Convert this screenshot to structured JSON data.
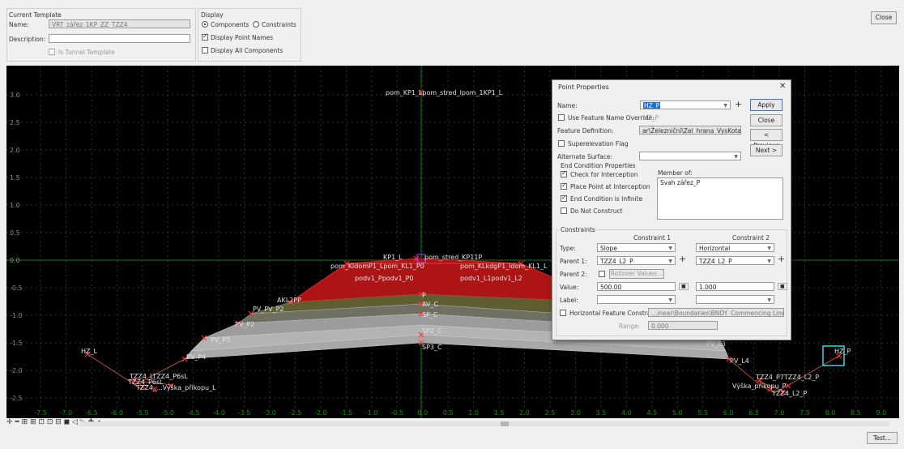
{
  "colors": {
    "canvas": "#000000",
    "grid": "#343434",
    "red": "#ad1515",
    "gray": "#a8a8a8",
    "axis": "#1d7a1d",
    "label": "#dfe3ea",
    "selectedBox": "#3fd6e0"
  },
  "template": {
    "group_title": "Current Template",
    "name_label": "Name:",
    "name_value": "VRT_zářez_1KP_ZZ_TZZ4",
    "desc_label": "Description:",
    "desc_value": "",
    "tunnel_label": "Is Tunnel Template"
  },
  "display": {
    "title": "Display",
    "components_label": "Components",
    "constraints_label": "Constraints",
    "mode": "Components",
    "point_names_label": "Display Point Names",
    "point_names_checked": true,
    "all_components_label": "Display All Components",
    "all_components_checked": false
  },
  "close_label": "Close",
  "test_label": "Test...",
  "y_ticks": [
    "3.0",
    "2.5",
    "2.0",
    "1.5",
    "1.0",
    "0.5",
    "0.0",
    "-0.5",
    "-1.0",
    "-1.5",
    "-2.0",
    "-2.5"
  ],
  "x_ticks": [
    "-7.5",
    "-7.0",
    "-6.5",
    "-6.0",
    "-5.5",
    "-5.0",
    "-4.5",
    "-4.0",
    "-3.5",
    "-3.0",
    "-2.5",
    "-2.0",
    "-1.5",
    "-1.0",
    "-0.5",
    "0.0",
    "0.5",
    "1.0",
    "1.5",
    "2.0",
    "2.5",
    "3.0",
    "3.5",
    "4.0",
    "4.5",
    "5.0",
    "5.5",
    "6.0",
    "6.5",
    "7.0",
    "7.5",
    "8.0",
    "8.5",
    "9.0"
  ],
  "point_labels": {
    "top": "pom_KP1_Lpom_stred_lpom_1KP1_L",
    "kp1_l": "KP1_L",
    "kp1_r": "pom_stred_KP11P",
    "kldom_l": "pom_KldomP1_Lpom_KL1_P0",
    "kldom_r": "pom_KLkdgP1_ldom_KL1_L",
    "podv_l": "podv1_Ppodv1_P0",
    "podv_r": "podv1_L1podv1_L2",
    "akl": "AKL2PP",
    "pvpv": "PV_PV_P2",
    "p": "P",
    "av_c": "AV_C",
    "sp_c": "SP_C",
    "pv_p2": "PV_P2",
    "sp2_c": "SP2_C",
    "pv_p3": "PV_P3",
    "sp3_c": "SP3_C",
    "hz_l": "HZ_L",
    "pv_p4": "PV_P4",
    "pv_l3": "PV_L3",
    "pv_l4": "PV_L4",
    "hz_p": "HZ_P",
    "tzz_l1": "TZZ4_LTZZ4_P6sL",
    "tzz_l2": "TZZ4_P6sL",
    "tzz_l3": "TZZ4_...Výška_příkopu_L",
    "tzz_r1": "TZZ4_P7TZZ4_L2_P",
    "tzz_r2": "Výška_příkopu_P",
    "tzz_r3": "TZZ4_L2_P"
  },
  "dialog": {
    "title": "Point Properties",
    "name_label": "Name:",
    "name_value": "HZ_P",
    "apply": "Apply",
    "close": "Close",
    "previous": "< Previous",
    "next": "Next >",
    "override_label": "Use Feature Name Override:",
    "override_value": "HZ_P",
    "feature_def_label": "Feature Definition:",
    "feature_def_value": "ar\\Železniční\\Zel_hrana_VysKota",
    "superelevation_label": "Superelevation Flag",
    "alt_surface_label": "Alternate Surface:",
    "end_cond_title": "End Condition Properties",
    "check_interception": "Check for Interception",
    "place_point": "Place Point at Interception",
    "infinite": "End Condition is Infinite",
    "do_not_construct": "Do Not Construct",
    "member_of_label": "Member of:",
    "member_of_value": "Svah zářez_P",
    "constraints_title": "Constraints",
    "constraint1_title": "Constraint 1",
    "constraint2_title": "Constraint 2",
    "type_label": "Type:",
    "type1": "Slope",
    "type2": "Horizontal",
    "parent1_label": "Parent 1:",
    "parent1_c1": "TZZ4_L2_P",
    "parent1_c2": "TZZ4_L2_P",
    "parent2_label": "Parent 2:",
    "rollover": "Rollover Values...",
    "value_label": "Value:",
    "value1": "500.00",
    "value2": "1.000",
    "label_label": "Label:",
    "hfc_label": "Horizontal Feature Constraint",
    "hfc_value": "...inear\\Boundaries\\BNDY_Commencing Line",
    "range_label": "Range:",
    "range_value": "0.000"
  }
}
